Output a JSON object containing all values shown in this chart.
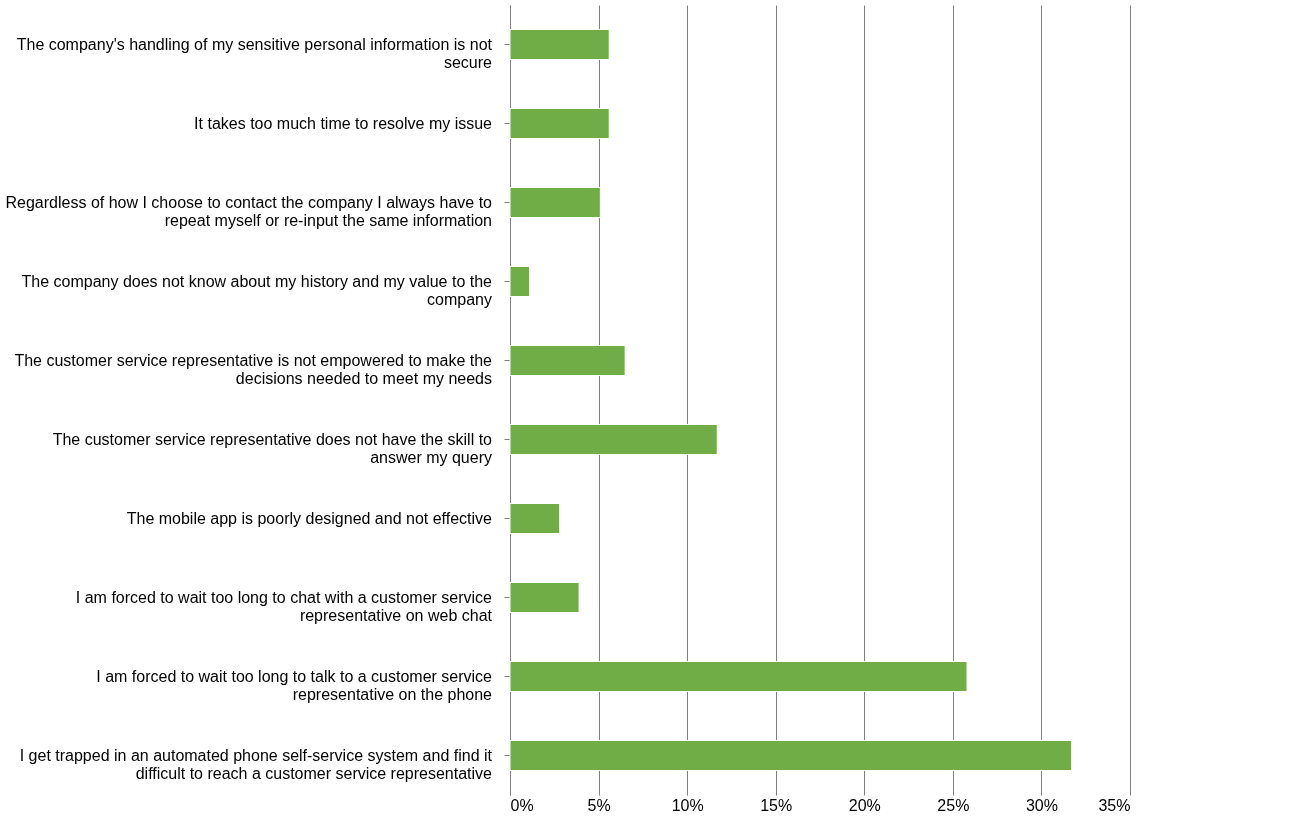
{
  "chart_data": {
    "type": "bar",
    "orientation": "horizontal",
    "categories": [
      "The company's handling of my sensitive personal information is not secure",
      "It takes too much time to resolve my issue",
      "Regardless of how I choose to contact the company I always have to repeat myself or re-input the same information",
      "The company does not know about my history and my value to the company",
      "The customer service representative is not empowered to make the decisions needed to meet my needs",
      "The customer service representative does not have the skill to answer my query",
      "The mobile app is poorly designed and not effective",
      "I am forced to wait too long to chat with a customer service representative on web chat",
      "I am forced to wait too long to talk to a customer service representative on the phone",
      "I get trapped in an automated phone self-service system and find it difficult to reach a customer service representative"
    ],
    "values": [
      5.6,
      5.6,
      5.1,
      1.1,
      6.5,
      11.7,
      2.8,
      3.9,
      25.8,
      31.7
    ],
    "color": "#70ad47",
    "xlim": [
      0,
      35
    ],
    "xticks": [
      {
        "value": 0,
        "label": "0%"
      },
      {
        "value": 5,
        "label": "5%"
      },
      {
        "value": 10,
        "label": "10%"
      },
      {
        "value": 15,
        "label": "15%"
      },
      {
        "value": 20,
        "label": "20%"
      },
      {
        "value": 25,
        "label": "25%"
      },
      {
        "value": 30,
        "label": "30%"
      },
      {
        "value": 35,
        "label": "35%"
      }
    ],
    "grid": "x"
  }
}
